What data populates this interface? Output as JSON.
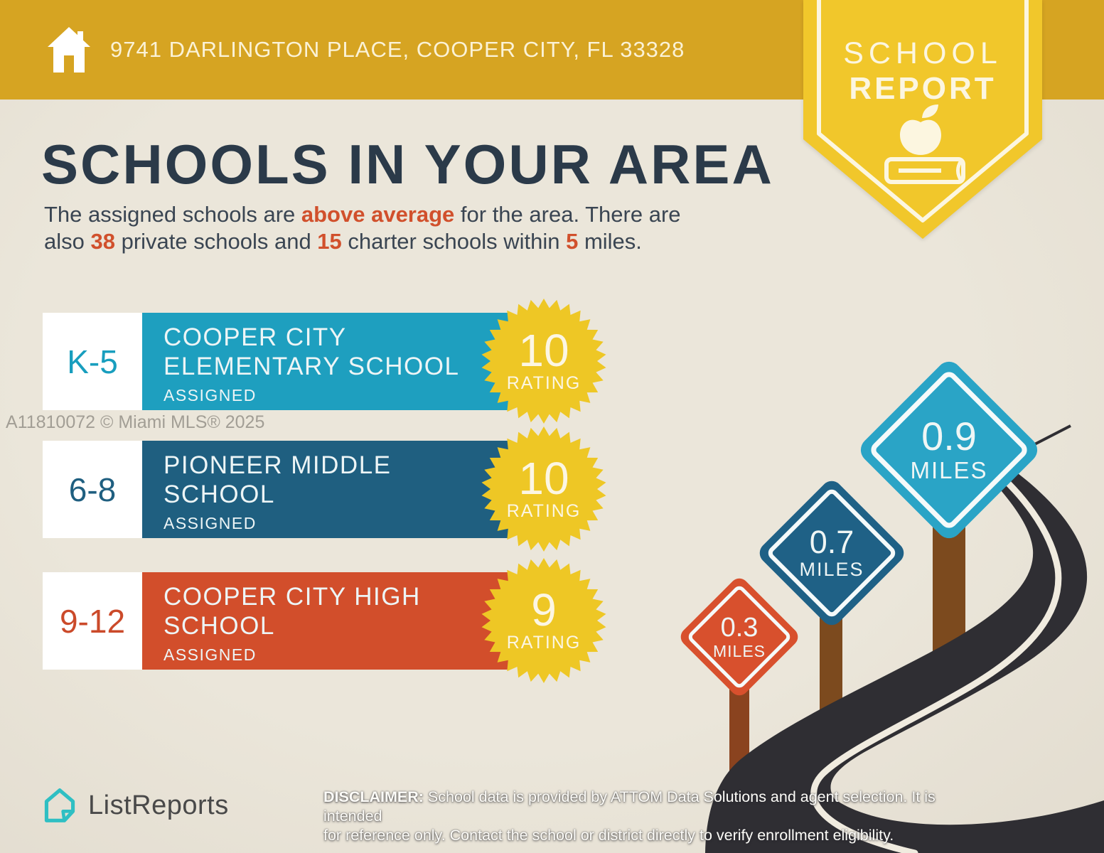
{
  "banner": {
    "address": "9741 DARLINGTON PLACE, COOPER CITY, FL 33328"
  },
  "ribbon": {
    "line1": "SCHOOL",
    "line2": "REPORT"
  },
  "heading": "SCHOOLS IN YOUR AREA",
  "intro": {
    "l1a": "The assigned schools are ",
    "l1b": "above average",
    "l1c": " for the area. There are",
    "l2a": "also ",
    "l2b": "38",
    "l2c": " private schools and ",
    "l2d": "15",
    "l2e": " charter schools within ",
    "l2f": "5",
    "l2g": " miles."
  },
  "watermark": "A11810072 © Miami MLS® 2025",
  "schools": [
    {
      "grades": "K-5",
      "name_line1": "COOPER CITY",
      "name_line2": "ELEMENTARY SCHOOL",
      "status": "ASSIGNED",
      "rating": "10",
      "rating_label": "RATING",
      "bar_color": "#1E9FBF"
    },
    {
      "grades": "6-8",
      "name_line1": "PIONEER MIDDLE",
      "name_line2": "SCHOOL",
      "status": "ASSIGNED",
      "rating": "10",
      "rating_label": "RATING",
      "bar_color": "#1F5F80"
    },
    {
      "grades": "9-12",
      "name_line1": "COOPER CITY HIGH",
      "name_line2": "SCHOOL",
      "status": "ASSIGNED",
      "rating": "9",
      "rating_label": "RATING",
      "bar_color": "#D24E2B"
    }
  ],
  "signs": [
    {
      "value": "0.3",
      "unit": "MILES",
      "color": "#D8502D"
    },
    {
      "value": "0.7",
      "unit": "MILES",
      "color": "#1F6186"
    },
    {
      "value": "0.9",
      "unit": "MILES",
      "color": "#2AA4C6"
    }
  ],
  "footer": {
    "logo_text": "ListReports",
    "disclaimer_label": "DISCLAIMER:",
    "disclaimer_line1": " School data is provided by ATTOM Data Solutions and agent selection. It is intended",
    "disclaimer_line2": "for reference only. Contact the school or district directly to verify enrollment eligibility."
  },
  "colors": {
    "banner_gold": "#D6A422",
    "ribbon_yellow": "#F1C72B",
    "badge_yellow": "#EEC725",
    "background": "#EAE5D9",
    "heading_navy": "#2B3A49",
    "accent_orange": "#D1502C",
    "road_dark": "#2F2E33",
    "post_brown": "#7C4A1E",
    "logo_teal": "#2FBFC3"
  }
}
